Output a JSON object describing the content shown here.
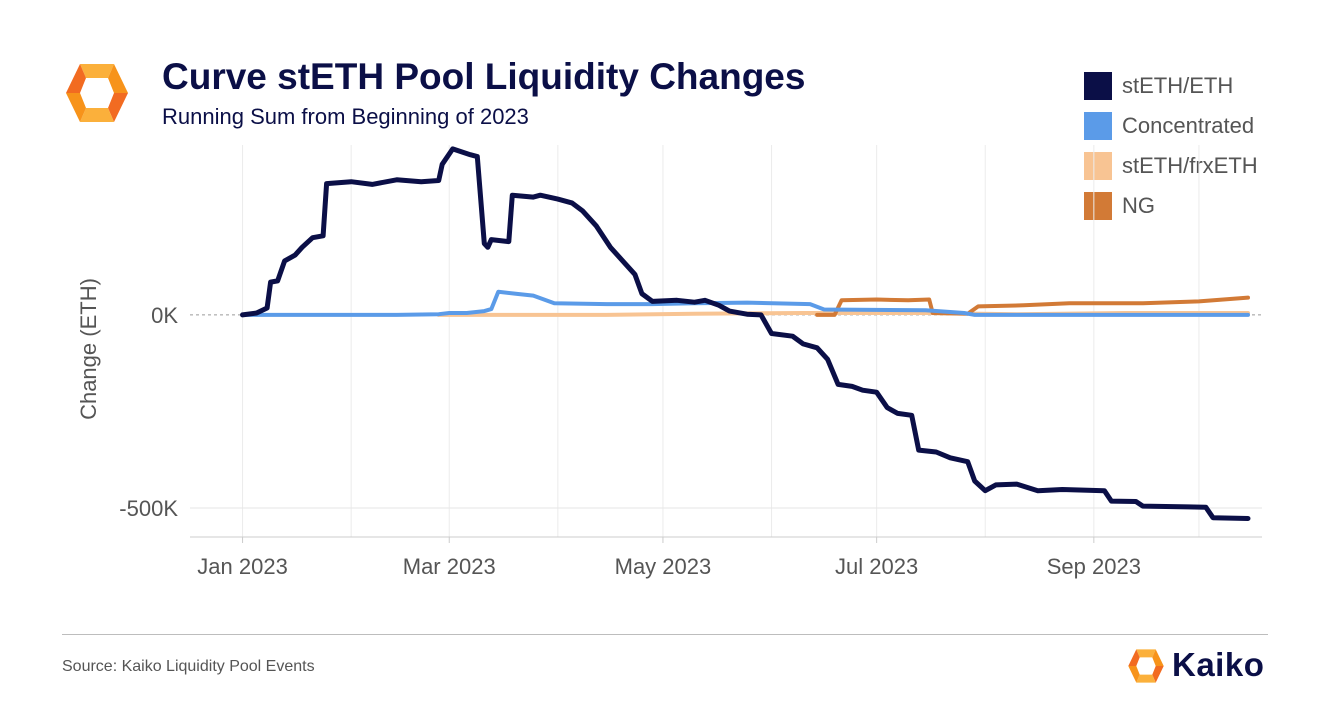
{
  "header": {
    "title": "Curve stETH Pool Liquidity Changes",
    "subtitle": "Running Sum from Beginning of 2023"
  },
  "footer": {
    "source": "Source: Kaiko Liquidity Pool Events",
    "brand": "Kaiko"
  },
  "colors": {
    "brand_orange": "#f7931a",
    "brand_navy": "#0b0f47"
  },
  "chart_data": {
    "type": "line",
    "ylabel": "Change (ETH)",
    "xlabel": "",
    "x_ticks": [
      "Jan 2023",
      "Mar 2023",
      "May 2023",
      "Jul 2023",
      "Sep 2023"
    ],
    "y_ticks": [
      {
        "label": "0K",
        "value": 0
      },
      {
        "label": "-500K",
        "value": -500000
      }
    ],
    "xlim": [
      "2022-12-17",
      "2023-10-19"
    ],
    "ylim": [
      -575000,
      440000
    ],
    "legend_position": "top-right",
    "zero_line": "dashed",
    "series": [
      {
        "name": "stETH/ETH",
        "color": "#0b0f47",
        "points": [
          [
            "2023-01-01",
            0
          ],
          [
            "2023-01-05",
            5000
          ],
          [
            "2023-01-08",
            18000
          ],
          [
            "2023-01-09",
            85000
          ],
          [
            "2023-01-11",
            88000
          ],
          [
            "2023-01-13",
            140000
          ],
          [
            "2023-01-16",
            155000
          ],
          [
            "2023-01-18",
            175000
          ],
          [
            "2023-01-21",
            200000
          ],
          [
            "2023-01-24",
            205000
          ],
          [
            "2023-01-25",
            340000
          ],
          [
            "2023-02-01",
            345000
          ],
          [
            "2023-02-07",
            338000
          ],
          [
            "2023-02-14",
            350000
          ],
          [
            "2023-02-21",
            345000
          ],
          [
            "2023-02-26",
            348000
          ],
          [
            "2023-02-27",
            390000
          ],
          [
            "2023-03-02",
            430000
          ],
          [
            "2023-03-07",
            415000
          ],
          [
            "2023-03-09",
            410000
          ],
          [
            "2023-03-11",
            185000
          ],
          [
            "2023-03-12",
            175000
          ],
          [
            "2023-03-13",
            195000
          ],
          [
            "2023-03-18",
            190000
          ],
          [
            "2023-03-19",
            310000
          ],
          [
            "2023-03-25",
            305000
          ],
          [
            "2023-03-27",
            310000
          ],
          [
            "2023-04-01",
            300000
          ],
          [
            "2023-04-05",
            290000
          ],
          [
            "2023-04-08",
            270000
          ],
          [
            "2023-04-12",
            230000
          ],
          [
            "2023-04-16",
            175000
          ],
          [
            "2023-04-20",
            135000
          ],
          [
            "2023-04-23",
            105000
          ],
          [
            "2023-04-25",
            55000
          ],
          [
            "2023-04-28",
            35000
          ],
          [
            "2023-05-05",
            38000
          ],
          [
            "2023-05-10",
            33000
          ],
          [
            "2023-05-13",
            38000
          ],
          [
            "2023-05-17",
            25000
          ],
          [
            "2023-05-20",
            10000
          ],
          [
            "2023-05-25",
            2000
          ],
          [
            "2023-05-29",
            0
          ],
          [
            "2023-06-01",
            -48000
          ],
          [
            "2023-06-07",
            -55000
          ],
          [
            "2023-06-10",
            -75000
          ],
          [
            "2023-06-14",
            -85000
          ],
          [
            "2023-06-17",
            -115000
          ],
          [
            "2023-06-20",
            -180000
          ],
          [
            "2023-06-24",
            -185000
          ],
          [
            "2023-06-27",
            -195000
          ],
          [
            "2023-07-01",
            -200000
          ],
          [
            "2023-07-04",
            -240000
          ],
          [
            "2023-07-07",
            -255000
          ],
          [
            "2023-07-11",
            -260000
          ],
          [
            "2023-07-13",
            -350000
          ],
          [
            "2023-07-18",
            -355000
          ],
          [
            "2023-07-22",
            -370000
          ],
          [
            "2023-07-27",
            -380000
          ],
          [
            "2023-07-29",
            -430000
          ],
          [
            "2023-08-01",
            -455000
          ],
          [
            "2023-08-04",
            -440000
          ],
          [
            "2023-08-10",
            -438000
          ],
          [
            "2023-08-16",
            -455000
          ],
          [
            "2023-08-23",
            -452000
          ],
          [
            "2023-09-04",
            -455000
          ],
          [
            "2023-09-06",
            -482000
          ],
          [
            "2023-09-13",
            -483000
          ],
          [
            "2023-09-15",
            -495000
          ],
          [
            "2023-09-28",
            -497000
          ],
          [
            "2023-10-03",
            -498000
          ],
          [
            "2023-10-05",
            -525000
          ],
          [
            "2023-10-15",
            -527000
          ]
        ]
      },
      {
        "name": "Concentrated",
        "color": "#5b9be8",
        "points": [
          [
            "2023-01-01",
            0
          ],
          [
            "2023-02-14",
            0
          ],
          [
            "2023-02-26",
            2000
          ],
          [
            "2023-03-01",
            5000
          ],
          [
            "2023-03-06",
            5000
          ],
          [
            "2023-03-11",
            10000
          ],
          [
            "2023-03-13",
            15000
          ],
          [
            "2023-03-15",
            60000
          ],
          [
            "2023-03-20",
            55000
          ],
          [
            "2023-03-25",
            50000
          ],
          [
            "2023-03-31",
            30000
          ],
          [
            "2023-04-15",
            28000
          ],
          [
            "2023-04-28",
            28000
          ],
          [
            "2023-05-10",
            30000
          ],
          [
            "2023-05-25",
            32000
          ],
          [
            "2023-06-12",
            28000
          ],
          [
            "2023-06-16",
            14000
          ],
          [
            "2023-07-15",
            12000
          ],
          [
            "2023-07-26",
            5000
          ],
          [
            "2023-07-29",
            0
          ],
          [
            "2023-10-15",
            0
          ]
        ]
      },
      {
        "name": "stETH/frxETH",
        "color": "#f8c493",
        "points": [
          [
            "2023-02-26",
            0
          ],
          [
            "2023-04-15",
            0
          ],
          [
            "2023-05-10",
            3000
          ],
          [
            "2023-06-10",
            5000
          ],
          [
            "2023-07-15",
            5000
          ],
          [
            "2023-08-10",
            2000
          ],
          [
            "2023-09-10",
            5000
          ],
          [
            "2023-10-15",
            5000
          ]
        ]
      },
      {
        "name": "NG",
        "color": "#d27a36",
        "points": [
          [
            "2023-06-14",
            0
          ],
          [
            "2023-06-19",
            0
          ],
          [
            "2023-06-21",
            38000
          ],
          [
            "2023-07-01",
            40000
          ],
          [
            "2023-07-10",
            38000
          ],
          [
            "2023-07-16",
            40000
          ],
          [
            "2023-07-17",
            5000
          ],
          [
            "2023-07-27",
            3000
          ],
          [
            "2023-07-30",
            22000
          ],
          [
            "2023-08-12",
            25000
          ],
          [
            "2023-08-25",
            30000
          ],
          [
            "2023-09-15",
            30000
          ],
          [
            "2023-10-01",
            35000
          ],
          [
            "2023-10-15",
            45000
          ]
        ]
      }
    ]
  }
}
